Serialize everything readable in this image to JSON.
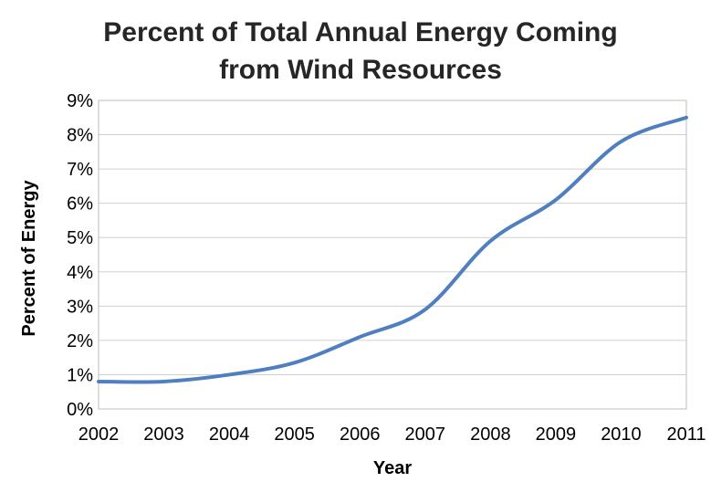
{
  "chart_data": {
    "type": "line",
    "title_lines": [
      "Percent of Total Annual Energy Coming",
      "from Wind Resources"
    ],
    "xlabel": "Year",
    "ylabel": "Percent of Energy",
    "x": [
      2002,
      2003,
      2004,
      2005,
      2006,
      2007,
      2008,
      2009,
      2010,
      2011
    ],
    "xticks": [
      "2002",
      "2003",
      "2004",
      "2005",
      "2006",
      "2007",
      "2008",
      "2009",
      "2010",
      "2011"
    ],
    "yticks": [
      "0%",
      "1%",
      "2%",
      "3%",
      "4%",
      "5%",
      "6%",
      "7%",
      "8%",
      "9%"
    ],
    "ylim": [
      0,
      9
    ],
    "grid": true,
    "legend": "none",
    "series": [
      {
        "values": [
          0.8,
          0.8,
          1.0,
          1.35,
          2.1,
          2.9,
          4.9,
          6.1,
          7.8,
          8.5
        ],
        "color": "#4f7fbf"
      }
    ]
  }
}
